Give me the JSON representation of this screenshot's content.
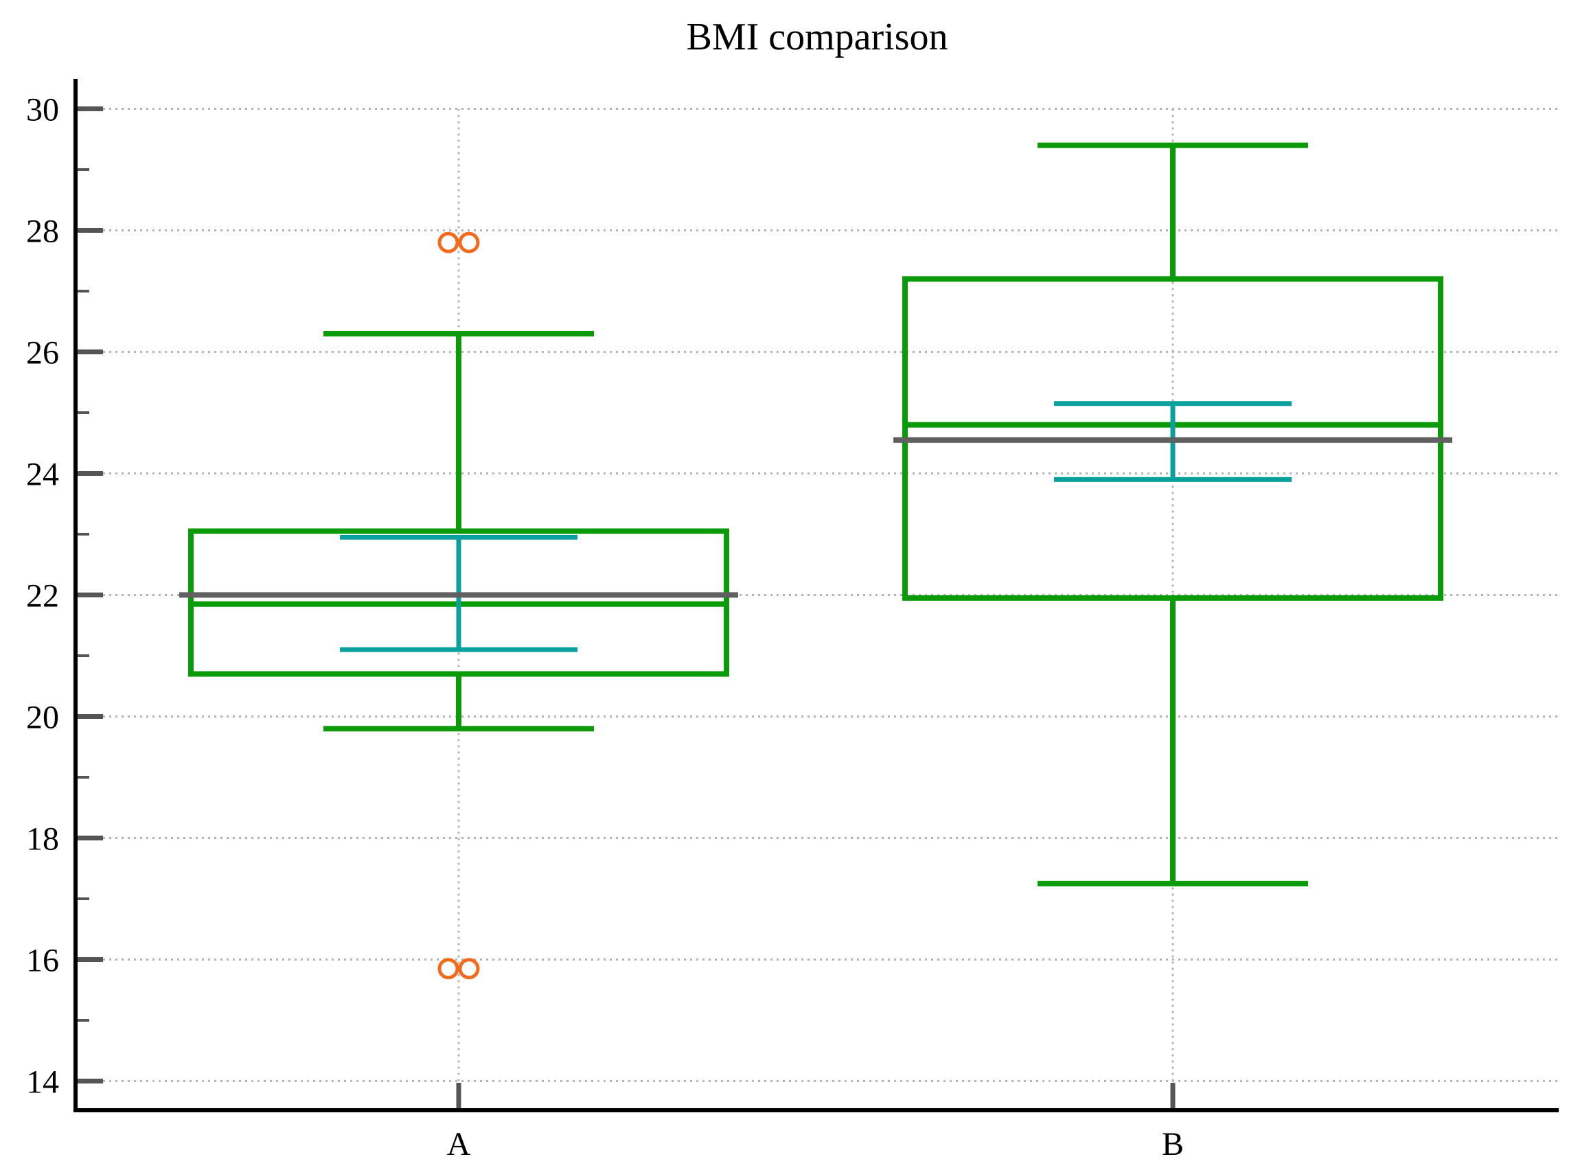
{
  "chart_data": {
    "type": "box",
    "title": "BMI comparison",
    "xlabel": "",
    "ylabel": "",
    "categories": [
      "A",
      "B"
    ],
    "ylim": [
      13.5,
      30.5
    ],
    "yticks": [
      14,
      16,
      18,
      20,
      22,
      24,
      26,
      28,
      30
    ],
    "grid": true,
    "boxes": [
      {
        "name": "A",
        "whisker_low": 19.8,
        "q1": 20.7,
        "median": 21.85,
        "q3": 23.05,
        "whisker_high": 26.3,
        "mean": 22.0,
        "mean_ci": [
          21.1,
          22.95
        ],
        "outliers": [
          27.8,
          27.8,
          15.85,
          15.85
        ]
      },
      {
        "name": "B",
        "whisker_low": 17.25,
        "q1": 21.95,
        "median": 24.8,
        "q3": 27.2,
        "whisker_high": 29.4,
        "mean": 24.55,
        "mean_ci": [
          23.9,
          25.15
        ],
        "outliers": []
      }
    ],
    "colors": {
      "box": "#0a9a0a",
      "mean_ci": "#0aa09e",
      "mean_line": "#606060",
      "outlier": "#f26b1d",
      "axis": "#000000",
      "grid": "#b4b4b4"
    }
  }
}
